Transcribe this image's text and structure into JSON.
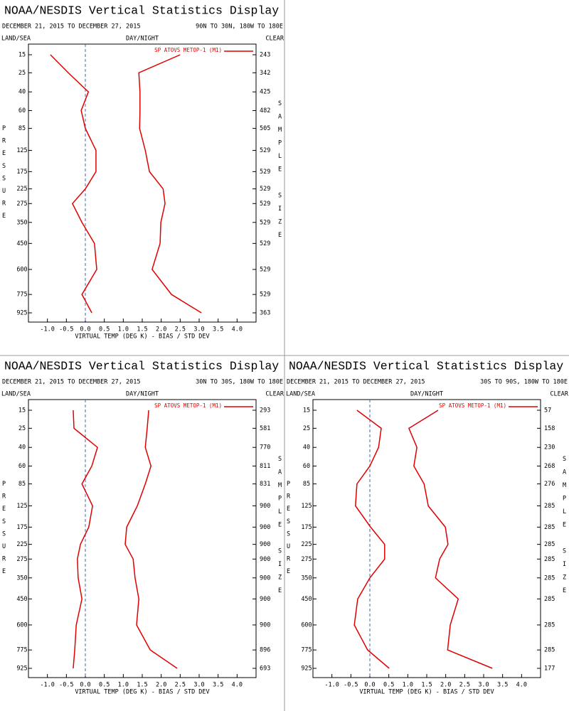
{
  "chart_data": [
    {
      "type": "line",
      "title": "NOAA/NESDIS Vertical Statistics Display",
      "date_range": "DECEMBER 21, 2015 TO DECEMBER 27, 2015",
      "region": "90N TO 30N, 180W TO 180E",
      "land_sea": "LAND/SEA",
      "day_night": "DAY/NIGHT",
      "clear": "CLEAR",
      "ylabel": "PRESSURE",
      "y2label": "SAMPLE SIZE",
      "xlabel": "VIRTUAL TEMP (DEG K) - BIAS / STD DEV",
      "y": [
        15,
        25,
        40,
        60,
        85,
        125,
        175,
        225,
        275,
        350,
        450,
        600,
        775,
        925
      ],
      "series": [
        {
          "name": "SP ATOVS METOP-1 (M1)",
          "color": "#e00000",
          "values": [
            -0.92,
            -0.45,
            0.08,
            -0.11,
            0.0,
            0.28,
            0.28,
            0.0,
            -0.34,
            -0.09,
            0.24,
            0.3,
            -0.09,
            0.17
          ]
        },
        {
          "color": "#e00000",
          "values": [
            2.5,
            1.41,
            1.44,
            1.44,
            1.43,
            1.58,
            1.69,
            2.05,
            2.1,
            1.99,
            1.97,
            1.76,
            2.27,
            3.06
          ]
        }
      ],
      "sample_sizes": [
        243,
        342,
        425,
        482,
        505,
        529,
        529,
        529,
        529,
        529,
        529,
        529,
        529,
        363
      ],
      "xlim": [
        -1.5,
        4.5
      ],
      "xticks": [
        {
          "value": -1,
          "label": "-1.0"
        },
        {
          "value": -0.5,
          "label": "-0.5"
        },
        {
          "value": 0,
          "label": "0.0"
        },
        {
          "value": 0.5,
          "label": "0.5"
        },
        {
          "value": 1,
          "label": "1.0"
        },
        {
          "value": 1.5,
          "label": "1.5"
        },
        {
          "value": 2,
          "label": "2.0"
        },
        {
          "value": 2.5,
          "label": "2.5"
        },
        {
          "value": 3,
          "label": "3.0"
        },
        {
          "value": 3.5,
          "label": "3.5"
        },
        {
          "value": 4,
          "label": "4.0"
        }
      ]
    },
    {
      "type": "line",
      "title": "NOAA/NESDIS Vertical Statistics Display",
      "date_range": "DECEMBER 21, 2015 TO DECEMBER 27, 2015",
      "region": "30N TO 30S, 180W TO 180E",
      "land_sea": "LAND/SEA",
      "day_night": "DAY/NIGHT",
      "clear": "CLEAR",
      "ylabel": "PRESSURE",
      "y2label": "SAMPLE SIZE",
      "xlabel": "VIRTUAL TEMP (DEG K) - BIAS / STD DEV",
      "y": [
        15,
        25,
        40,
        60,
        85,
        125,
        175,
        225,
        275,
        350,
        450,
        600,
        775,
        925
      ],
      "series": [
        {
          "name": "SP ATOVS METOP-1 (M1)",
          "color": "#e00000",
          "values": [
            -0.32,
            -0.3,
            0.32,
            0.17,
            -0.09,
            0.19,
            0.09,
            -0.13,
            -0.21,
            -0.19,
            -0.09,
            -0.24,
            -0.28,
            -0.32
          ]
        },
        {
          "color": "#e00000",
          "values": [
            1.67,
            1.63,
            1.58,
            1.73,
            1.58,
            1.37,
            1.09,
            1.05,
            1.26,
            1.31,
            1.41,
            1.35,
            1.71,
            2.42
          ]
        }
      ],
      "sample_sizes": [
        293,
        581,
        770,
        811,
        831,
        900,
        900,
        900,
        900,
        900,
        900,
        900,
        896,
        693
      ],
      "xlim": [
        -1.5,
        4.5
      ],
      "xticks": [
        {
          "value": -1,
          "label": "-1.0"
        },
        {
          "value": -0.5,
          "label": "-0.5"
        },
        {
          "value": 0,
          "label": "0.0"
        },
        {
          "value": 0.5,
          "label": "0.5"
        },
        {
          "value": 1,
          "label": "1.0"
        },
        {
          "value": 1.5,
          "label": "1.5"
        },
        {
          "value": 2,
          "label": "2.0"
        },
        {
          "value": 2.5,
          "label": "2.5"
        },
        {
          "value": 3,
          "label": "3.0"
        },
        {
          "value": 3.5,
          "label": "3.5"
        },
        {
          "value": 4,
          "label": "4.0"
        }
      ]
    },
    {
      "type": "line",
      "title": "NOAA/NESDIS Vertical Statistics Display",
      "date_range": "DECEMBER 21, 2015 TO DECEMBER 27, 2015",
      "region": "30S TO 90S, 180W TO 180E",
      "land_sea": "LAND/SEA",
      "day_night": "DAY/NIGHT",
      "clear": "CLEAR",
      "ylabel": "PRESSURE",
      "y2label": "SAMPLE SIZE",
      "xlabel": "VIRTUAL TEMP (DEG K) - BIAS / STD DEV",
      "y": [
        15,
        25,
        40,
        60,
        85,
        125,
        175,
        225,
        275,
        350,
        450,
        600,
        775,
        925
      ],
      "series": [
        {
          "name": "SP ATOVS METOP-1 (M1)",
          "color": "#e00000",
          "values": [
            -0.34,
            0.3,
            0.23,
            0.0,
            -0.34,
            -0.38,
            0.02,
            0.39,
            0.39,
            0.0,
            -0.32,
            -0.41,
            -0.06,
            0.51
          ]
        },
        {
          "color": "#e00000",
          "values": [
            1.8,
            1.03,
            1.24,
            1.16,
            1.43,
            1.54,
            1.99,
            2.06,
            1.84,
            1.73,
            2.33,
            2.12,
            2.05,
            3.23
          ]
        }
      ],
      "sample_sizes": [
        57,
        158,
        230,
        268,
        276,
        285,
        285,
        285,
        285,
        285,
        285,
        285,
        285,
        177
      ],
      "xlim": [
        -1.5,
        4.5
      ],
      "xticks": [
        {
          "value": -1,
          "label": "-1.0"
        },
        {
          "value": -0.5,
          "label": "-0.5"
        },
        {
          "value": 0,
          "label": "0.0"
        },
        {
          "value": 0.5,
          "label": "0.5"
        },
        {
          "value": 1,
          "label": "1.0"
        },
        {
          "value": 1.5,
          "label": "1.5"
        },
        {
          "value": 2,
          "label": "2.0"
        },
        {
          "value": 2.5,
          "label": "2.5"
        },
        {
          "value": 3,
          "label": "3.0"
        },
        {
          "value": 3.5,
          "label": "3.5"
        },
        {
          "value": 4,
          "label": "4.0"
        }
      ]
    }
  ]
}
